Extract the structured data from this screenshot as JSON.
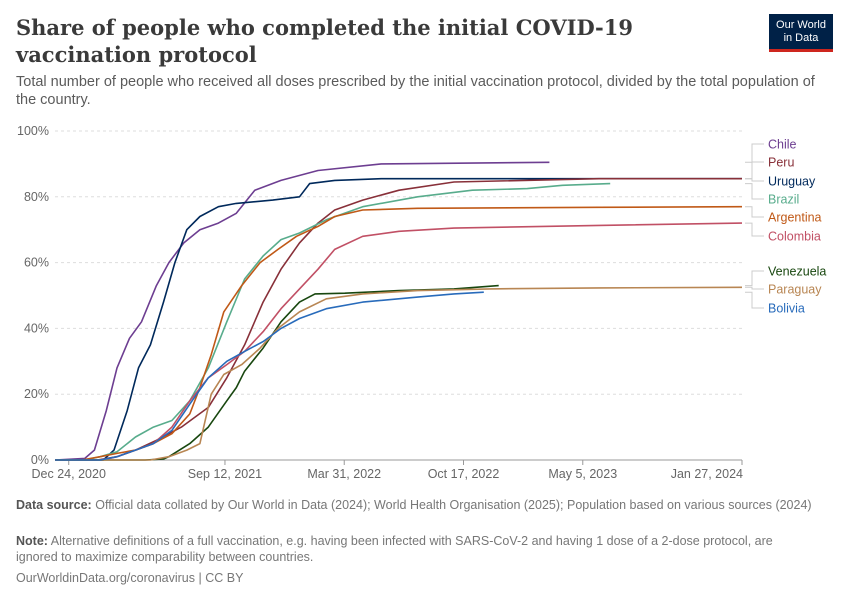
{
  "header": {
    "title": "Share of people who completed the initial COVID-19 vaccination protocol",
    "subtitle": "Total number of people who received all doses prescribed by the initial vaccination protocol, divided by the total population of the country.",
    "logo_line1": "Our World",
    "logo_line2": "in Data"
  },
  "footer": {
    "source_label": "Data source:",
    "source_text": "Official data collated by Our World in Data (2024); World Health Organisation (2025); Population based on various sources (2024)",
    "note_label": "Note:",
    "note_text": "Alternative definitions of a full vaccination, e.g. having been infected with SARS-CoV-2 and having 1 dose of a 2-dose protocol, are ignored to maximize comparability between countries.",
    "credit": "OurWorldinData.org/coronavirus | CC BY"
  },
  "colors": {
    "Chile": "#6d3e91",
    "Peru": "#883039",
    "Uruguay": "#00295b",
    "Brazil": "#58ac8c",
    "Argentina": "#c05917",
    "Colombia": "#c15065",
    "Venezuela": "#18470f",
    "Paraguay": "#b88653",
    "Bolivia": "#286bbb"
  },
  "chart_data": {
    "type": "line",
    "title": "Share of people who completed the initial COVID-19 vaccination protocol",
    "x_type": "date",
    "xlim": [
      "2020-12-01",
      "2024-01-27"
    ],
    "ylim": [
      0,
      100
    ],
    "y_unit": "%",
    "y_ticks": [
      "0%",
      "20%",
      "40%",
      "60%",
      "80%",
      "100%"
    ],
    "x_ticks": [
      {
        "date": "2020-12-24",
        "label": "Dec 24, 2020"
      },
      {
        "date": "2021-09-12",
        "label": "Sep 12, 2021"
      },
      {
        "date": "2022-03-31",
        "label": "Mar 31, 2022"
      },
      {
        "date": "2022-10-17",
        "label": "Oct 17, 2022"
      },
      {
        "date": "2023-05-05",
        "label": "May 5, 2023"
      },
      {
        "date": "2024-01-27",
        "label": "Jan 27, 2024"
      }
    ],
    "grid": true,
    "legend": "right",
    "series": [
      {
        "name": "Chile",
        "points": [
          [
            "2020-12-01",
            0
          ],
          [
            "2021-01-20",
            0.5
          ],
          [
            "2021-02-05",
            3
          ],
          [
            "2021-02-25",
            15
          ],
          [
            "2021-03-15",
            28
          ],
          [
            "2021-04-05",
            37
          ],
          [
            "2021-04-25",
            42
          ],
          [
            "2021-05-20",
            53
          ],
          [
            "2021-06-10",
            60
          ],
          [
            "2021-07-05",
            66
          ],
          [
            "2021-08-01",
            70
          ],
          [
            "2021-09-01",
            72
          ],
          [
            "2021-10-01",
            75
          ],
          [
            "2021-11-01",
            82
          ],
          [
            "2021-12-15",
            85
          ],
          [
            "2022-02-15",
            88
          ],
          [
            "2022-06-01",
            90
          ],
          [
            "2023-03-10",
            90.5
          ]
        ]
      },
      {
        "name": "Uruguay",
        "points": [
          [
            "2020-12-01",
            0
          ],
          [
            "2021-02-20",
            0
          ],
          [
            "2021-03-10",
            3
          ],
          [
            "2021-04-01",
            15
          ],
          [
            "2021-04-20",
            28
          ],
          [
            "2021-05-10",
            35
          ],
          [
            "2021-06-01",
            48
          ],
          [
            "2021-06-20",
            60
          ],
          [
            "2021-07-10",
            70
          ],
          [
            "2021-08-01",
            74
          ],
          [
            "2021-09-01",
            77
          ],
          [
            "2021-10-01",
            78
          ],
          [
            "2021-12-01",
            79
          ],
          [
            "2022-01-15",
            80
          ],
          [
            "2022-02-01",
            84
          ],
          [
            "2022-03-15",
            85
          ],
          [
            "2022-06-01",
            85.5
          ],
          [
            "2024-01-27",
            85.5
          ]
        ]
      },
      {
        "name": "Peru",
        "points": [
          [
            "2020-12-01",
            0
          ],
          [
            "2021-02-10",
            0
          ],
          [
            "2021-03-15",
            1
          ],
          [
            "2021-04-15",
            3
          ],
          [
            "2021-05-20",
            6
          ],
          [
            "2021-07-01",
            10
          ],
          [
            "2021-08-15",
            16
          ],
          [
            "2021-09-15",
            25
          ],
          [
            "2021-10-15",
            35
          ],
          [
            "2021-11-15",
            48
          ],
          [
            "2021-12-15",
            58
          ],
          [
            "2022-01-15",
            66
          ],
          [
            "2022-02-15",
            72
          ],
          [
            "2022-03-15",
            76
          ],
          [
            "2022-05-01",
            79
          ],
          [
            "2022-07-01",
            82
          ],
          [
            "2022-10-01",
            84.5
          ],
          [
            "2023-06-01",
            85.5
          ],
          [
            "2024-01-27",
            85.5
          ]
        ]
      },
      {
        "name": "Brazil",
        "points": [
          [
            "2020-12-01",
            0
          ],
          [
            "2021-01-20",
            0
          ],
          [
            "2021-02-15",
            1
          ],
          [
            "2021-03-15",
            2.5
          ],
          [
            "2021-04-15",
            7
          ],
          [
            "2021-05-15",
            10
          ],
          [
            "2021-06-15",
            12
          ],
          [
            "2021-07-15",
            18
          ],
          [
            "2021-08-15",
            28
          ],
          [
            "2021-09-15",
            42
          ],
          [
            "2021-10-15",
            55
          ],
          [
            "2021-11-15",
            62
          ],
          [
            "2021-12-15",
            67
          ],
          [
            "2022-01-15",
            69
          ],
          [
            "2022-03-01",
            73
          ],
          [
            "2022-05-01",
            77
          ],
          [
            "2022-08-01",
            80
          ],
          [
            "2022-11-01",
            82
          ],
          [
            "2023-02-01",
            82.5
          ],
          [
            "2023-04-01",
            83.5
          ],
          [
            "2023-06-20",
            84
          ]
        ]
      },
      {
        "name": "Argentina",
        "points": [
          [
            "2020-12-01",
            0
          ],
          [
            "2021-01-15",
            0
          ],
          [
            "2021-02-15",
            1
          ],
          [
            "2021-03-15",
            2
          ],
          [
            "2021-04-15",
            3
          ],
          [
            "2021-05-15",
            5
          ],
          [
            "2021-06-15",
            8
          ],
          [
            "2021-07-15",
            14
          ],
          [
            "2021-08-01",
            22
          ],
          [
            "2021-08-20",
            32
          ],
          [
            "2021-09-10",
            45
          ],
          [
            "2021-10-10",
            53
          ],
          [
            "2021-11-10",
            60
          ],
          [
            "2021-12-10",
            64
          ],
          [
            "2022-01-10",
            68
          ],
          [
            "2022-02-15",
            71
          ],
          [
            "2022-03-15",
            74
          ],
          [
            "2022-05-01",
            76
          ],
          [
            "2022-08-01",
            76.5
          ],
          [
            "2023-06-01",
            76.8
          ],
          [
            "2024-01-27",
            77
          ]
        ]
      },
      {
        "name": "Colombia",
        "points": [
          [
            "2020-12-01",
            0
          ],
          [
            "2021-02-20",
            0
          ],
          [
            "2021-03-15",
            1
          ],
          [
            "2021-04-15",
            3
          ],
          [
            "2021-05-15",
            5
          ],
          [
            "2021-06-15",
            10
          ],
          [
            "2021-07-15",
            18
          ],
          [
            "2021-08-15",
            25
          ],
          [
            "2021-09-15",
            29
          ],
          [
            "2021-10-15",
            33
          ],
          [
            "2021-11-15",
            39
          ],
          [
            "2021-12-15",
            46
          ],
          [
            "2022-01-15",
            52
          ],
          [
            "2022-02-15",
            58
          ],
          [
            "2022-03-15",
            64
          ],
          [
            "2022-05-01",
            68
          ],
          [
            "2022-07-01",
            69.5
          ],
          [
            "2022-10-01",
            70.5
          ],
          [
            "2023-06-01",
            71.3
          ],
          [
            "2024-01-27",
            72
          ]
        ]
      },
      {
        "name": "Venezuela",
        "points": [
          [
            "2020-12-01",
            0
          ],
          [
            "2021-05-01",
            0
          ],
          [
            "2021-06-01",
            0.3
          ],
          [
            "2021-06-10",
            1
          ],
          [
            "2021-07-15",
            5
          ],
          [
            "2021-08-15",
            10
          ],
          [
            "2021-09-15",
            18
          ],
          [
            "2021-10-01",
            22
          ],
          [
            "2021-10-15",
            27
          ],
          [
            "2021-11-15",
            34
          ],
          [
            "2021-12-15",
            42
          ],
          [
            "2022-01-15",
            48
          ],
          [
            "2022-02-10",
            50.5
          ],
          [
            "2022-04-01",
            50.7
          ],
          [
            "2022-07-01",
            51.5
          ],
          [
            "2022-10-01",
            52
          ],
          [
            "2022-12-15",
            53
          ]
        ]
      },
      {
        "name": "Paraguay",
        "points": [
          [
            "2020-12-01",
            0
          ],
          [
            "2021-05-10",
            0
          ],
          [
            "2021-06-10",
            1
          ],
          [
            "2021-07-10",
            3
          ],
          [
            "2021-08-01",
            5
          ],
          [
            "2021-08-20",
            20
          ],
          [
            "2021-09-10",
            26
          ],
          [
            "2021-10-10",
            29
          ],
          [
            "2021-11-10",
            34
          ],
          [
            "2021-12-10",
            40
          ],
          [
            "2022-01-15",
            45
          ],
          [
            "2022-03-01",
            49
          ],
          [
            "2022-05-01",
            50.5
          ],
          [
            "2022-08-01",
            51.5
          ],
          [
            "2022-12-01",
            52
          ],
          [
            "2023-06-01",
            52.3
          ],
          [
            "2024-01-27",
            52.5
          ]
        ]
      },
      {
        "name": "Bolivia",
        "points": [
          [
            "2020-12-01",
            0
          ],
          [
            "2021-02-15",
            0
          ],
          [
            "2021-03-15",
            1
          ],
          [
            "2021-04-15",
            3
          ],
          [
            "2021-05-15",
            5
          ],
          [
            "2021-06-15",
            9
          ],
          [
            "2021-07-15",
            17
          ],
          [
            "2021-08-15",
            25
          ],
          [
            "2021-09-15",
            30
          ],
          [
            "2021-10-15",
            33
          ],
          [
            "2021-11-15",
            36
          ],
          [
            "2021-12-15",
            40
          ],
          [
            "2022-01-15",
            43
          ],
          [
            "2022-03-01",
            46
          ],
          [
            "2022-05-01",
            48
          ],
          [
            "2022-08-01",
            49.5
          ],
          [
            "2022-10-01",
            50.5
          ],
          [
            "2022-11-20",
            51
          ]
        ]
      }
    ]
  }
}
